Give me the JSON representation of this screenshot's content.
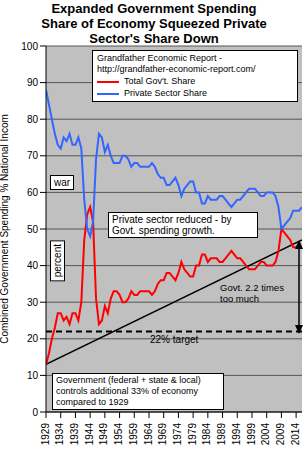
{
  "chart_data": {
    "type": "line",
    "title": "Expanded Government Spending Share of Economy Squeezed Private Sector's Share Down",
    "y_label": "Combined Government Spending % National Incom",
    "source": "Grandfather Economic Report - http://grandfather-economic-report.com/",
    "x": [
      1929,
      1930,
      1931,
      1932,
      1933,
      1934,
      1935,
      1936,
      1937,
      1938,
      1939,
      1940,
      1941,
      1942,
      1943,
      1944,
      1945,
      1946,
      1947,
      1948,
      1949,
      1950,
      1951,
      1952,
      1953,
      1954,
      1955,
      1956,
      1957,
      1958,
      1959,
      1960,
      1961,
      1962,
      1963,
      1964,
      1965,
      1966,
      1967,
      1968,
      1969,
      1970,
      1971,
      1972,
      1973,
      1974,
      1975,
      1976,
      1977,
      1978,
      1979,
      1980,
      1981,
      1982,
      1983,
      1984,
      1985,
      1986,
      1987,
      1988,
      1989,
      1990,
      1991,
      1992,
      1993,
      1994,
      1995,
      1996,
      1997,
      1998,
      1999,
      2000,
      2001,
      2002,
      2003,
      2004,
      2005,
      2006,
      2007,
      2008,
      2009,
      2010,
      2011,
      2012,
      2013,
      2014,
      2015,
      2016
    ],
    "series": [
      {
        "name": "Total Gov't. Share",
        "color": "#ff0000",
        "values": [
          13,
          16,
          20,
          23,
          27,
          27,
          25,
          26,
          24,
          27,
          27,
          25,
          30,
          47,
          54,
          56,
          52,
          31,
          24,
          25,
          29,
          27,
          31,
          33,
          33,
          32,
          30,
          30,
          31,
          33,
          32,
          32,
          33,
          33,
          33,
          33,
          32,
          33,
          35,
          36,
          36,
          38,
          38,
          37,
          36,
          38,
          41,
          39,
          38,
          37,
          37,
          40,
          40,
          43,
          43,
          41,
          42,
          42,
          42,
          41,
          41,
          42,
          43,
          44,
          43,
          42,
          42,
          41,
          40,
          39,
          39,
          39,
          40,
          41,
          41,
          40,
          40,
          40,
          41,
          44,
          50,
          49,
          48,
          47,
          45,
          45,
          45,
          45
        ]
      },
      {
        "name": "Private Sector Share",
        "color": "#3366ff",
        "values": [
          88,
          84,
          80,
          76,
          73,
          72,
          75,
          74,
          76,
          73,
          73,
          75,
          72,
          58,
          50,
          48,
          52,
          69,
          76,
          75,
          71,
          73,
          70,
          68,
          68,
          68,
          70,
          70,
          69,
          67,
          68,
          68,
          67,
          67,
          67,
          67,
          68,
          67,
          65,
          64,
          64,
          62,
          62,
          63,
          64,
          62,
          59,
          61,
          62,
          63,
          63,
          60,
          60,
          57,
          57,
          59,
          58,
          58,
          58,
          59,
          59,
          58,
          57,
          56,
          57,
          58,
          58,
          59,
          60,
          61,
          61,
          61,
          60,
          59,
          59,
          60,
          60,
          60,
          59,
          56,
          50,
          51,
          52,
          53,
          55,
          55,
          55,
          56
        ]
      }
    ],
    "trend_line": {
      "x": [
        1929,
        2016
      ],
      "values": [
        13,
        47
      ]
    },
    "target": {
      "value": 22,
      "label": "22% target"
    },
    "annotations": [
      "war",
      "percent",
      "Private sector reduced - by Govt. spending growth.",
      "Govt. 2.2 times too much",
      "Government (federal + state & local) controls additional 33% of economy compared to 1929"
    ],
    "xlim": [
      1929,
      2016
    ],
    "xticks": [
      1929,
      1934,
      1939,
      1944,
      1949,
      1954,
      1959,
      1964,
      1969,
      1974,
      1979,
      1984,
      1989,
      1994,
      1999,
      2004,
      2009,
      2014
    ],
    "ylim": [
      0,
      100
    ],
    "yticks": [
      0,
      10,
      20,
      30,
      40,
      50,
      60,
      70,
      80,
      90,
      100
    ],
    "grid": true,
    "legend": "upper right"
  }
}
